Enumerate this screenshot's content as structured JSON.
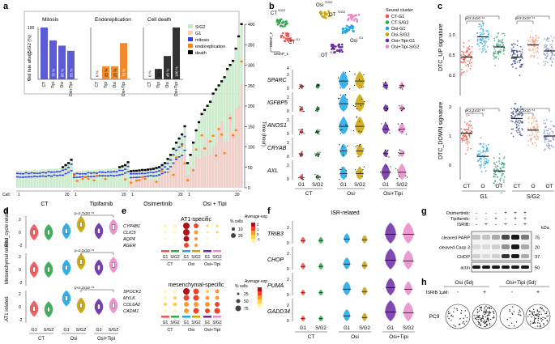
{
  "panels": {
    "a": "a",
    "b": "b",
    "c": "c",
    "d": "d",
    "e": "e",
    "f": "f",
    "g": "g",
    "h": "h"
  },
  "chart_data": [
    {
      "id": "a-inset",
      "type": "bar",
      "title": "Cell fate after S/G2 (%)",
      "groups": [
        {
          "name": "Mitosis",
          "categories": [
            "CT",
            "Tipi",
            "Osi",
            "Osi+Tipi"
          ],
          "values": [
            100,
            75,
            65,
            55
          ],
          "labels": [
            "",
            "75 %",
            "65 %",
            "55 %"
          ],
          "color": "#5b5bd6"
        },
        {
          "name": "Endoreplication",
          "categories": [
            "CT",
            "Tipi",
            "Osi",
            "Osi+Tipi"
          ],
          "values": [
            0,
            25,
            25,
            70
          ],
          "labels": [
            "0 %",
            "25 %",
            "25 %",
            "70 %"
          ],
          "color": "#f08a2c"
        },
        {
          "name": "Cell death",
          "categories": [
            "CT",
            "Tipi",
            "Osi",
            "Osi+Tipi"
          ],
          "values": [
            0,
            20,
            45,
            100
          ],
          "labels": [
            "0 %",
            "20 %",
            "45 %",
            "100 %"
          ],
          "color": "#333333"
        }
      ],
      "ylabel": "Cell fate after S/G2 (%)",
      "ylim": [
        0,
        100
      ],
      "legend": [
        "S/G2",
        "G1",
        "mitosis",
        "endoreplication",
        "death"
      ],
      "legend_colors": [
        "#c6eac6",
        "#f7c8c8",
        "#3b3bdc",
        "#ff7f1a",
        "#000000"
      ]
    },
    {
      "id": "a-timeline",
      "type": "bar",
      "ylabel": "Time (hour)",
      "ylim": [
        0,
        400
      ],
      "yticks": [
        0,
        50,
        100,
        150,
        200,
        250,
        300,
        350,
        400
      ],
      "xlabel_prefix": "Cell:",
      "groups": [
        "CT",
        "Tipifarnib",
        "Osimertinib",
        "Osi + Tipi"
      ],
      "group_ticks": [
        [
          "1",
          "20"
        ],
        [
          "1",
          "20"
        ],
        [
          "1",
          "20"
        ],
        [
          "1",
          "20"
        ]
      ]
    },
    {
      "id": "c",
      "type": "scatter",
      "series": [
        {
          "name": "DTC_UP signature",
          "ylim": [
            -0.5,
            1.5
          ],
          "yticks": [
            "0.0",
            "0.5",
            "1.0"
          ]
        },
        {
          "name": "DTC_DOWN signature",
          "ylim": [
            -0.5,
            2.0
          ],
          "yticks": [
            "0",
            "1",
            "2"
          ]
        }
      ],
      "categories": [
        "CT",
        "O",
        "OT",
        "CT",
        "O",
        "OT"
      ],
      "phases": [
        "G1",
        "S/G2"
      ],
      "pvalues": [
        "p<2.2x10⁻¹⁶",
        "p<2.2x10⁻¹⁶",
        "p<2.2x10⁻¹⁶",
        "p<2.2x10⁻¹⁶"
      ]
    },
    {
      "id": "g",
      "type": "table",
      "rows": [
        "Osimertinib:",
        "Tipifarnib:",
        "ISRIB:"
      ],
      "signs": [
        [
          "-",
          "-",
          "-",
          "+",
          "+",
          "+"
        ],
        [
          "-",
          "-",
          "+",
          "-",
          "+",
          "+"
        ],
        [
          "-",
          "+",
          "-",
          "+",
          "-",
          "+"
        ]
      ],
      "bands": [
        "cleaved PARP",
        "cleaved Casp 3",
        "CHOP",
        "actin"
      ],
      "kda": [
        "75",
        "20",
        "37",
        "50"
      ],
      "kda_label": "kDa"
    }
  ],
  "b": {
    "umap_labels": {
      "ct_sg2": "CT",
      "ct_sg2_sup": "S/G2",
      "ct_g1": "CT",
      "ct_g1_sup": "G1",
      "osi_sg2": "Osi",
      "osi_sg2_sup": "S/G2",
      "osi_g1": "Osi",
      "osi_g1_sup": "G1",
      "ot_sg2": "OT",
      "ot_sg2_sup": "S/G2",
      "ot_g1": "OT",
      "ot_g1_sup": "G1",
      "umap1": "UMAP_1",
      "umap2": "UMAP_2"
    },
    "legend_title": "Seurat cluster",
    "legend": [
      "CT-G1",
      "CT-S/G2",
      "Osi-G1",
      "Osi-S/G2",
      "Osi+Tipi-G1",
      "Osi+Tipi-S/G2"
    ],
    "legend_colors": [
      "#f05050",
      "#2ea84a",
      "#1aa6e8",
      "#c9a300",
      "#6b2aa6",
      "#e88ac9"
    ],
    "genes": [
      "SPARC",
      "IGFBP5",
      "ANOS1",
      "CRYAB",
      "AXL"
    ],
    "ymax": [
      "2",
      "2",
      "2",
      "2",
      "2"
    ],
    "y0": "0",
    "phase": [
      "G1",
      "S/G2",
      "G1",
      "S/G2",
      "G1",
      "S/G2"
    ],
    "groups": [
      "CT",
      "Osi",
      "Osi+Tipi"
    ],
    "top_tick": "4"
  },
  "d": {
    "ylabels": [
      "Rho_cycle related",
      "Mesenchymal related",
      "AT1 related"
    ],
    "pvalues": [
      "p=2.7x10⁻¹⁶",
      "p=2.2x10⁻¹⁶",
      "p<2.2x10⁻¹⁶"
    ],
    "phase": [
      "G1",
      "S/G2",
      "G1",
      "S/G2",
      "G1",
      "S/G2"
    ],
    "groups": [
      "CT",
      "Osi",
      "Osi+Tipi"
    ],
    "yt": [
      "2",
      "0",
      "-2"
    ]
  },
  "e": {
    "title1": "AT1-specific",
    "genes1": [
      "CYP4B1",
      "CLIC5",
      "AQP4",
      "AGER"
    ],
    "title2": "mesenchymal-specific",
    "genes2": [
      "SPOCK1",
      "MYLK",
      "COL6A2",
      "CADM1"
    ],
    "pct_label": "% cells",
    "pct1": [
      "10",
      "20"
    ],
    "pct2": [
      "25",
      "50",
      "75"
    ],
    "expr_label": "Average expr.",
    "expr_ticks": [
      "2",
      "1",
      "0",
      "-1"
    ],
    "phase": [
      "G1",
      "S/G2",
      "G1",
      "S/G2",
      "G1",
      "S/G2"
    ],
    "groups": [
      "CT",
      "Osi",
      "Osi+Tipi"
    ]
  },
  "f": {
    "title": "ISR-related",
    "genes": [
      "TRIB3",
      "CHOP",
      "PUMA",
      "GADD34"
    ],
    "ymax": [
      "2",
      "2",
      "2",
      "2"
    ],
    "y0": "0",
    "phase": [
      "G1",
      "S/G2",
      "G1",
      "S/G2",
      "G1",
      "S/G2"
    ],
    "groups": [
      "CT",
      "Osi",
      "Osi+Tipi"
    ]
  },
  "h": {
    "col1": "Osi (5d)",
    "col2": "Osi+Tipi (5d)",
    "isrib": "ISRIB 1μM:",
    "signs": [
      "-",
      "+",
      "-",
      "+"
    ],
    "cell": "PC9"
  }
}
